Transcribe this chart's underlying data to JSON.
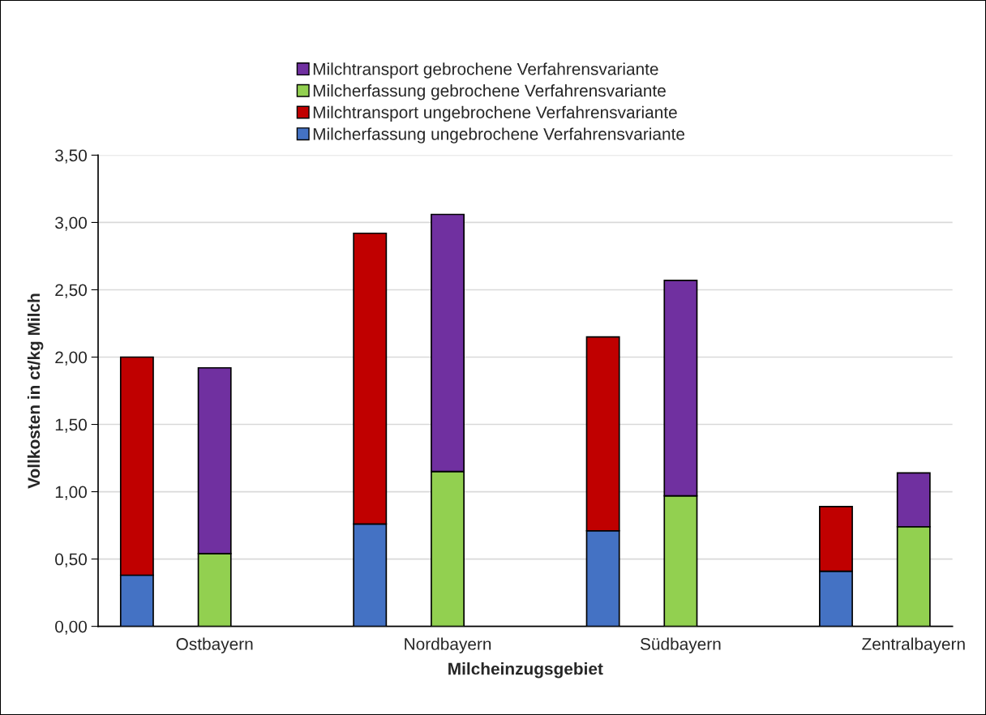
{
  "chart_data": {
    "type": "bar",
    "stacked": true,
    "xlabel": "Milcheinzugsgebiet",
    "ylabel": "Vollkosten in ct/kg Milch",
    "categories": [
      null,
      "Ostbayern",
      null,
      null,
      "Nordbayern",
      null,
      null,
      "Südbayern",
      null,
      null,
      "Zentralbayern"
    ],
    "series": [
      {
        "name": "Milcherfassung ungebrochene Verfahrensvariante",
        "color": "#4472c4",
        "values": [
          0.38,
          null,
          null,
          0.76,
          null,
          null,
          0.71,
          null,
          null,
          0.41,
          null
        ]
      },
      {
        "name": "Milchtransport ungebrochene Verfahrensvariante",
        "color": "#c00000",
        "values": [
          1.62,
          null,
          null,
          2.16,
          null,
          null,
          1.44,
          null,
          null,
          0.48,
          null
        ]
      },
      {
        "name": "Milcherfassung gebrochene Verfahrensvariante",
        "color": "#92d050",
        "values": [
          null,
          0.54,
          null,
          null,
          1.15,
          null,
          null,
          0.97,
          null,
          null,
          0.74
        ]
      },
      {
        "name": "Milchtransport gebrochene Verfahrensvariante",
        "color": "#7030a0",
        "values": [
          null,
          1.38,
          null,
          null,
          1.91,
          null,
          null,
          1.6,
          null,
          null,
          0.4
        ]
      }
    ],
    "ylim": [
      0,
      3.5
    ],
    "yticks": [
      {
        "value": 0,
        "label": "0,00"
      },
      {
        "value": 0.5,
        "label": "0,50"
      },
      {
        "value": 1,
        "label": "1,00"
      },
      {
        "value": 1.5,
        "label": "1,50"
      },
      {
        "value": 2,
        "label": "2,00"
      },
      {
        "value": 2.5,
        "label": "2,50"
      },
      {
        "value": 3,
        "label": "3,00"
      },
      {
        "value": 3.5,
        "label": "3,50"
      }
    ],
    "grid": "y",
    "legend": "top"
  }
}
